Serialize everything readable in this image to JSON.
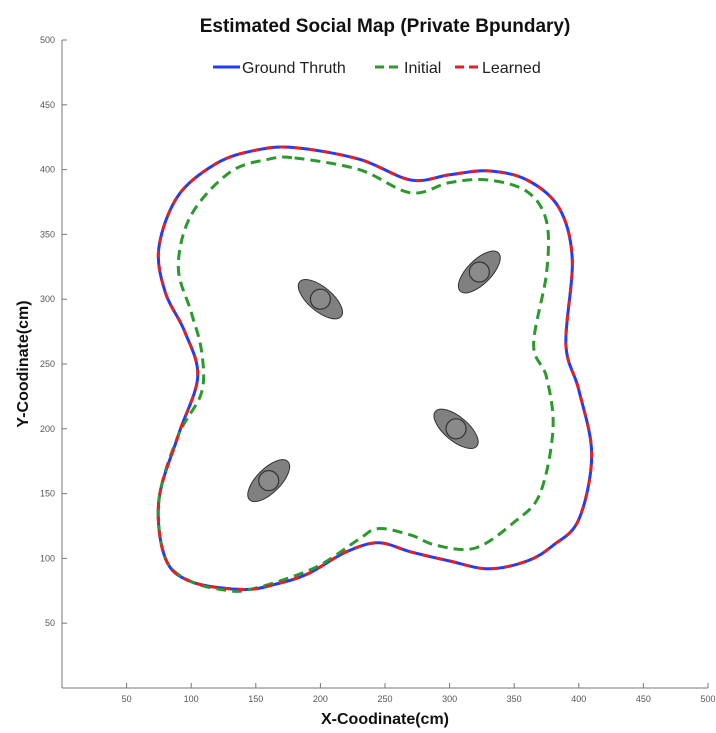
{
  "chart_data": {
    "type": "line",
    "title": "Estimated Social Map (Private Bpundary)",
    "xlabel": "X-Coodinate(cm)",
    "ylabel": "Y-Coodinate(cm)",
    "xlim": [
      0,
      500
    ],
    "ylim": [
      0,
      500
    ],
    "xticks": [
      "50",
      "100",
      "150",
      "200",
      "250",
      "300",
      "350",
      "400",
      "450",
      "500"
    ],
    "yticks": [
      "50",
      "100",
      "150",
      "200",
      "250",
      "300",
      "350",
      "400",
      "450",
      "500"
    ],
    "legend": {
      "placement": "top"
    },
    "series": [
      {
        "name": "Ground Thruth",
        "color": "#1f3cff",
        "style": "solid",
        "x": [
          180,
          230,
          270,
          300,
          330,
          360,
          385,
          395,
          390,
          400,
          410,
          400,
          380,
          360,
          330,
          300,
          270,
          245,
          220,
          190,
          165,
          140,
          100,
          80,
          75,
          90,
          105,
          95,
          80,
          75,
          90,
          120,
          150,
          180
        ],
        "y": [
          417,
          408,
          392,
          396,
          399,
          392,
          370,
          330,
          265,
          230,
          180,
          130,
          110,
          98,
          92,
          98,
          105,
          112,
          105,
          88,
          80,
          76,
          82,
          100,
          145,
          195,
          240,
          275,
          305,
          340,
          380,
          405,
          415,
          417
        ]
      },
      {
        "name": "Initial",
        "color": "#2a9a2a",
        "style": "dashed",
        "x": [
          180,
          230,
          270,
          300,
          330,
          360,
          375,
          375,
          365,
          375,
          380,
          370,
          350,
          320,
          290,
          270,
          245,
          230,
          200,
          170,
          145,
          130,
          100,
          80,
          75,
          90,
          108,
          108,
          100,
          90,
          100,
          130,
          160,
          180
        ],
        "y": [
          409,
          400,
          382,
          390,
          392,
          383,
          360,
          320,
          265,
          240,
          200,
          150,
          128,
          108,
          110,
          118,
          123,
          115,
          95,
          83,
          76,
          75,
          82,
          100,
          145,
          195,
          228,
          260,
          290,
          325,
          365,
          398,
          408,
          409
        ]
      },
      {
        "name": "Learned",
        "color": "#e52020",
        "style": "dashed",
        "x": [
          180,
          230,
          270,
          300,
          330,
          360,
          385,
          395,
          390,
          400,
          410,
          400,
          380,
          360,
          330,
          300,
          270,
          245,
          220,
          190,
          165,
          140,
          100,
          80,
          75,
          90,
          105,
          95,
          80,
          75,
          90,
          120,
          150,
          180
        ],
        "y": [
          417,
          408,
          392,
          396,
          399,
          392,
          370,
          330,
          265,
          230,
          180,
          130,
          110,
          98,
          92,
          98,
          105,
          112,
          105,
          88,
          80,
          76,
          82,
          100,
          145,
          195,
          240,
          275,
          305,
          340,
          380,
          405,
          415,
          417
        ]
      }
    ],
    "people": [
      {
        "x": 200,
        "y": 300,
        "angle_deg": 40
      },
      {
        "x": 323,
        "y": 321,
        "angle_deg": -45
      },
      {
        "x": 305,
        "y": 200,
        "angle_deg": 40
      },
      {
        "x": 160,
        "y": 160,
        "angle_deg": -45
      }
    ]
  }
}
